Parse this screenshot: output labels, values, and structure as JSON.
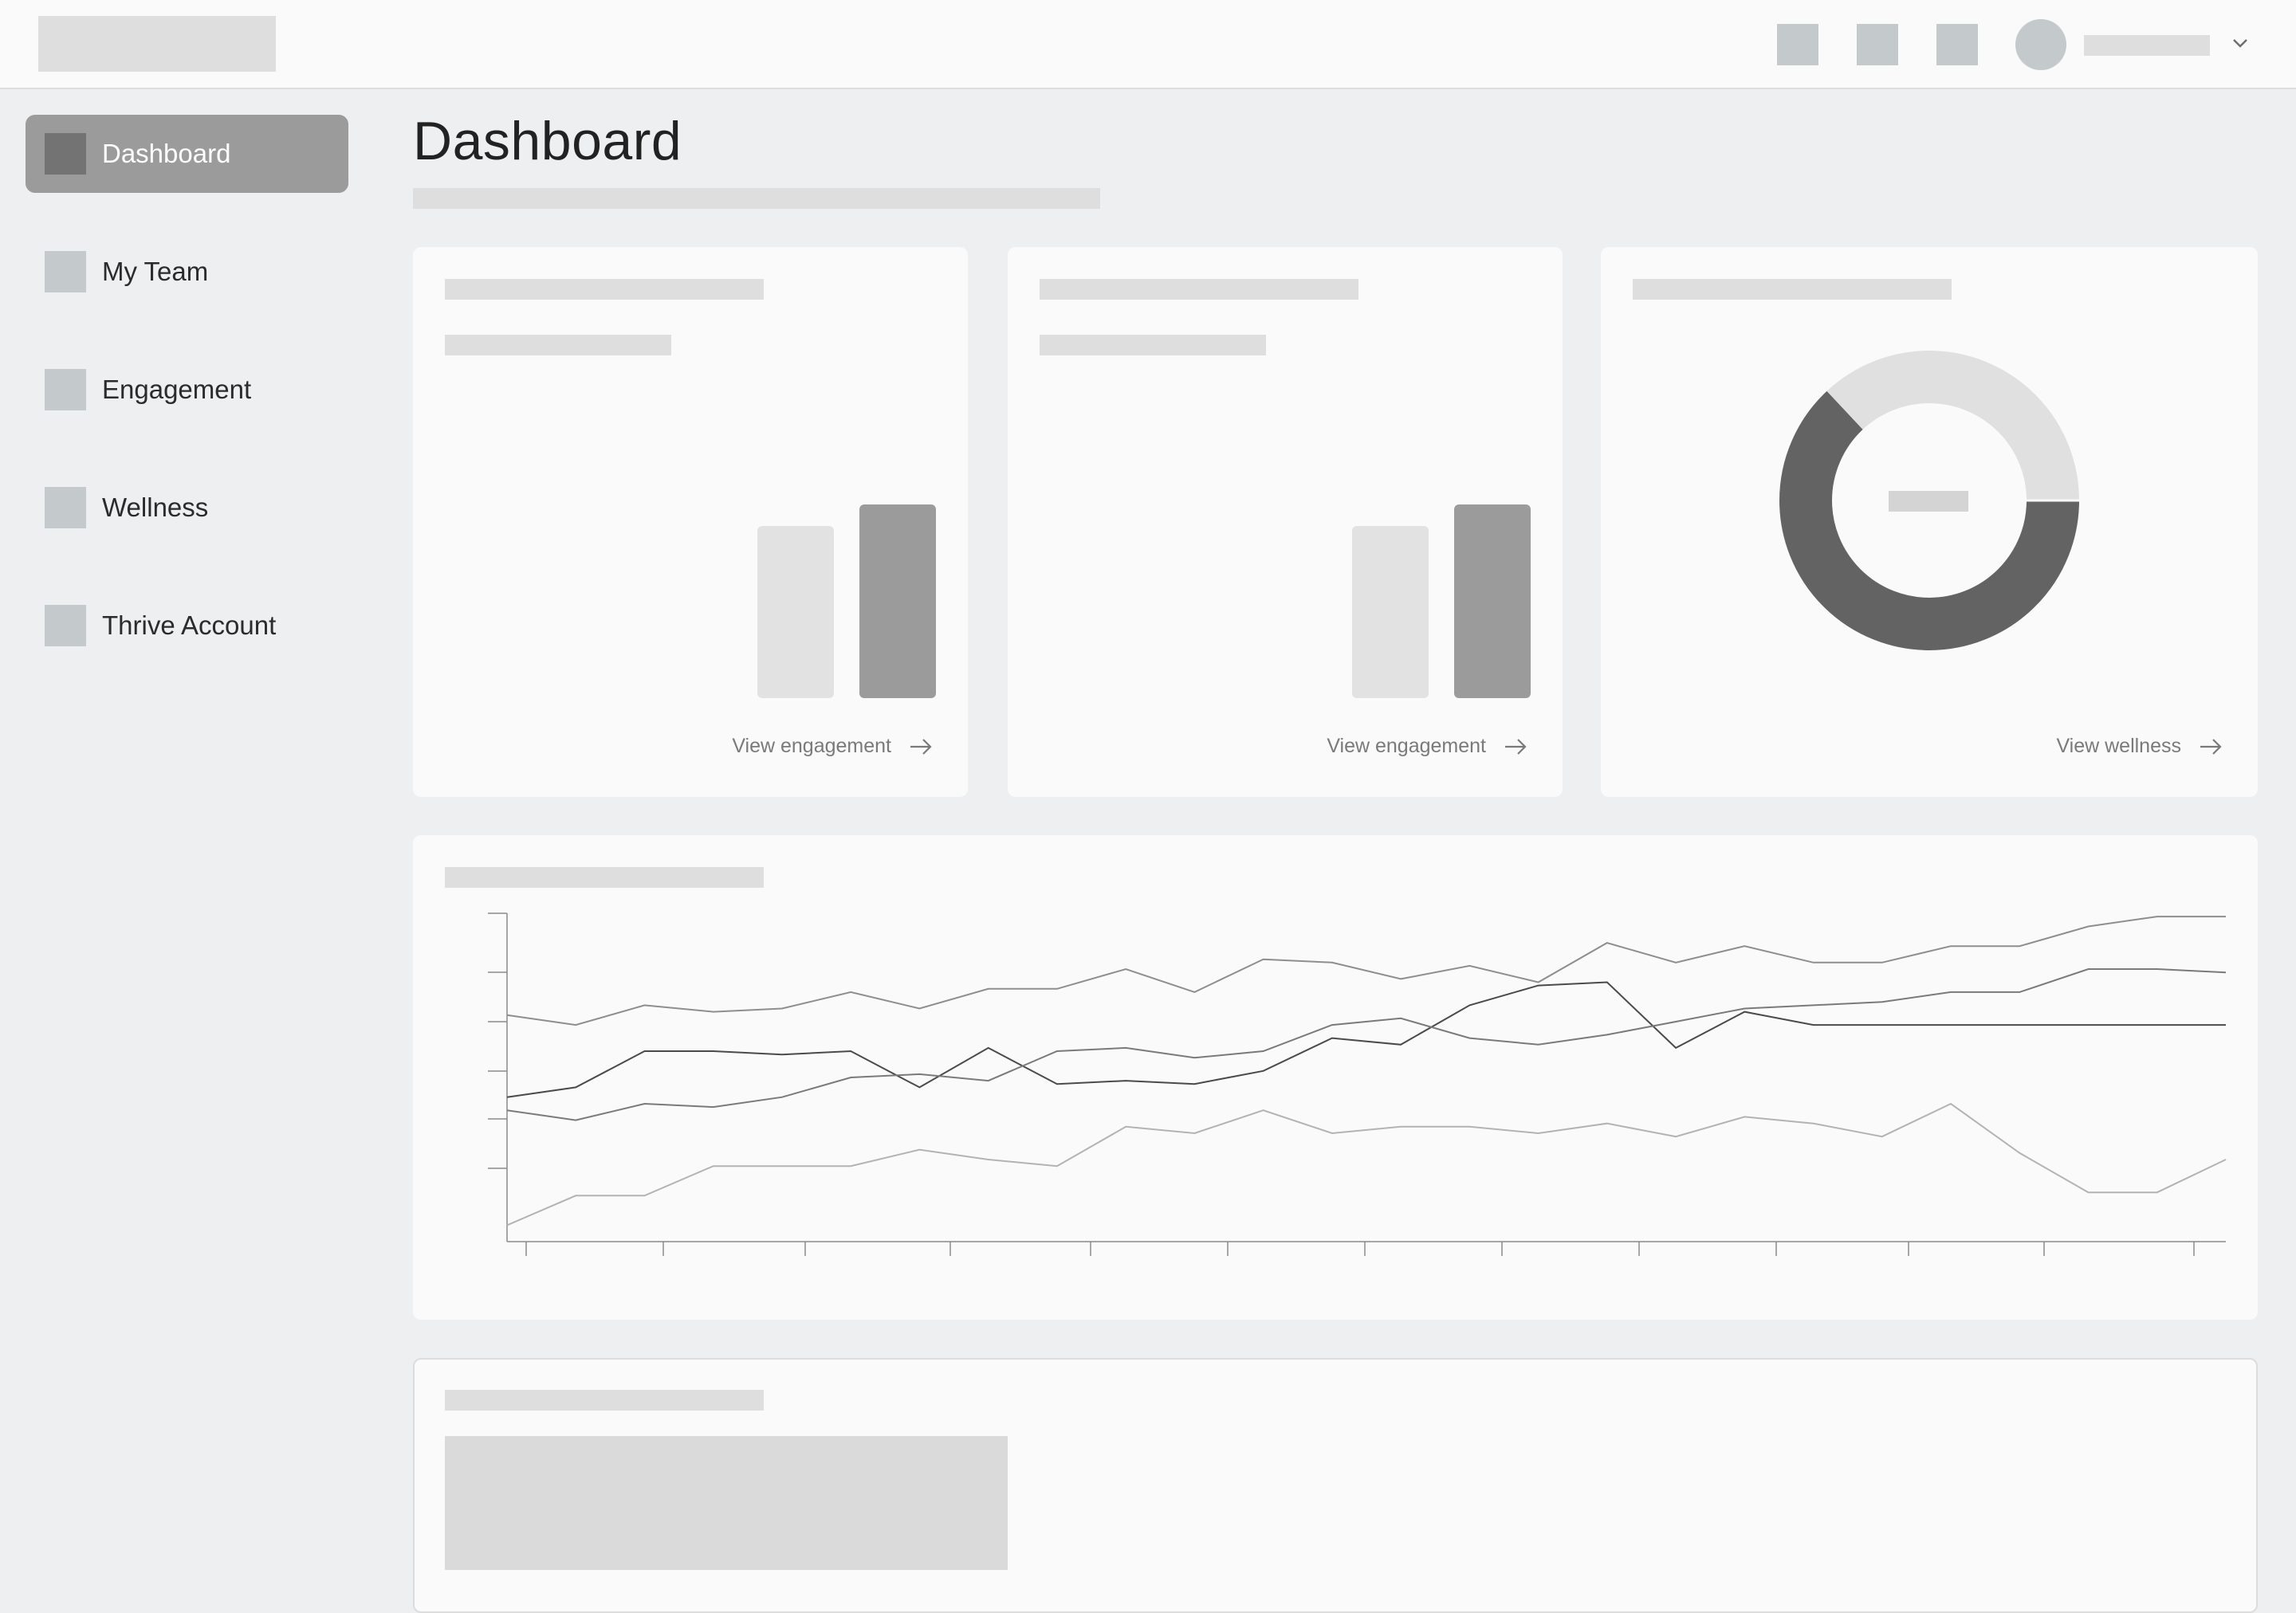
{
  "header": {
    "icons": [
      "square-placeholder-icon",
      "square-placeholder-icon",
      "square-placeholder-icon"
    ],
    "avatar_icon": "user-avatar-icon",
    "menu_icon": "chevron-down-icon"
  },
  "sidebar": {
    "items": [
      {
        "label": "Dashboard",
        "active": true
      },
      {
        "label": "My Team",
        "active": false
      },
      {
        "label": "Engagement",
        "active": false
      },
      {
        "label": "Wellness",
        "active": false
      },
      {
        "label": "Thrive Account",
        "active": false
      }
    ]
  },
  "main": {
    "title": "Dashboard",
    "cards": [
      {
        "link_label": "View engagement",
        "link_icon": "arrow-right-icon"
      },
      {
        "link_label": "View engagement",
        "link_icon": "arrow-right-icon"
      },
      {
        "link_label": "View wellness",
        "link_icon": "arrow-right-icon"
      }
    ]
  },
  "colors": {
    "background": "#eeeff0",
    "surface": "#fafafa",
    "skeleton": "#dedede",
    "active_nav": "#9b9b9b",
    "bar_light": "#e2e2e2",
    "bar_dark": "#9b9b9b",
    "donut_dark": "#636363",
    "donut_light": "#e0e0e0"
  },
  "chart_data": [
    {
      "type": "bar",
      "categories": [
        "",
        ""
      ],
      "values": [
        0.82,
        0.92
      ],
      "ylim": [
        0,
        1
      ]
    },
    {
      "type": "bar",
      "categories": [
        "",
        ""
      ],
      "values": [
        0.82,
        0.92
      ],
      "ylim": [
        0,
        1
      ]
    },
    {
      "type": "pie",
      "values": [
        0.63,
        0.37
      ],
      "colors": [
        "#636363",
        "#e0e0e0"
      ]
    },
    {
      "type": "line",
      "x": [
        0,
        1,
        2,
        3,
        4,
        5,
        6,
        7,
        8,
        9,
        10,
        11,
        12,
        13,
        14,
        15,
        16,
        17,
        18,
        19,
        20,
        21,
        22,
        23,
        24,
        25
      ],
      "ylim": [
        0,
        1
      ],
      "grid": false,
      "series": [
        {
          "color": "#8e8e8e",
          "values": [
            0.69,
            0.66,
            0.72,
            0.7,
            0.71,
            0.76,
            0.71,
            0.77,
            0.77,
            0.83,
            0.76,
            0.86,
            0.85,
            0.8,
            0.84,
            0.79,
            0.91,
            0.85,
            0.9,
            0.85,
            0.85,
            0.9,
            0.9,
            0.96,
            0.99,
            0.99
          ]
        },
        {
          "color": "#4a4a4a",
          "values": [
            0.44,
            0.47,
            0.58,
            0.58,
            0.57,
            0.58,
            0.47,
            0.59,
            0.48,
            0.49,
            0.48,
            0.52,
            0.62,
            0.6,
            0.72,
            0.78,
            0.79,
            0.59,
            0.7,
            0.66,
            0.66,
            0.66,
            0.66,
            0.66,
            0.66,
            0.66
          ]
        },
        {
          "color": "#7a7a7a",
          "values": [
            0.4,
            0.37,
            0.42,
            0.41,
            0.44,
            0.5,
            0.51,
            0.49,
            0.58,
            0.59,
            0.56,
            0.58,
            0.66,
            0.68,
            0.62,
            0.6,
            0.63,
            0.67,
            0.71,
            0.72,
            0.73,
            0.76,
            0.76,
            0.83,
            0.83,
            0.82
          ]
        },
        {
          "color": "#b3b3b3",
          "values": [
            0.05,
            0.14,
            0.14,
            0.23,
            0.23,
            0.23,
            0.28,
            0.25,
            0.23,
            0.35,
            0.33,
            0.4,
            0.33,
            0.35,
            0.35,
            0.33,
            0.36,
            0.32,
            0.38,
            0.36,
            0.32,
            0.42,
            0.27,
            0.15,
            0.15,
            0.25
          ]
        }
      ]
    }
  ]
}
